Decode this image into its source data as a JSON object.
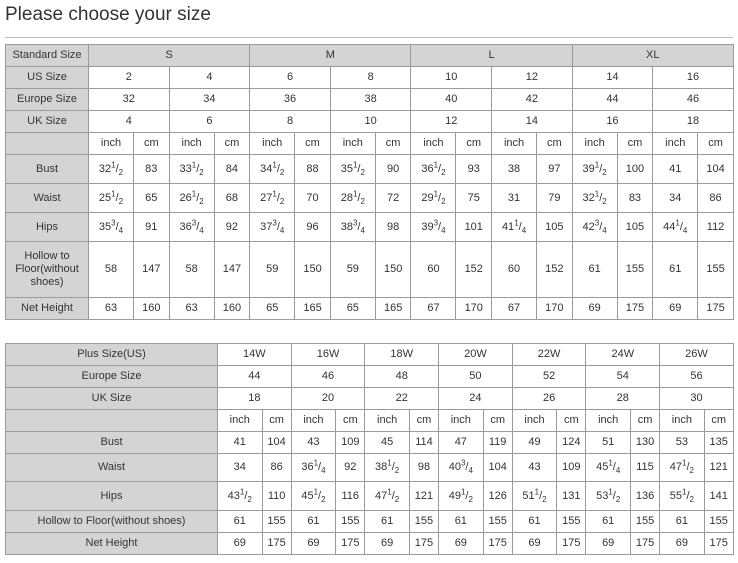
{
  "title": "Please choose your size",
  "table1": {
    "standard": {
      "label": "Standard Size",
      "groups": [
        "S",
        "M",
        "L",
        "XL"
      ]
    },
    "us": {
      "label": "US Size",
      "values": [
        "2",
        "4",
        "6",
        "8",
        "10",
        "12",
        "14",
        "16"
      ]
    },
    "europe": {
      "label": "Europe Size",
      "values": [
        "32",
        "34",
        "36",
        "38",
        "40",
        "42",
        "44",
        "46"
      ]
    },
    "uk": {
      "label": "UK Size",
      "values": [
        "4",
        "6",
        "8",
        "10",
        "12",
        "14",
        "16",
        "18"
      ]
    },
    "units": [
      "inch",
      "cm"
    ],
    "rows": [
      {
        "label": "Bust",
        "values": [
          "32 1/2",
          "83",
          "33 1/2",
          "84",
          "34 1/2",
          "88",
          "35 1/2",
          "90",
          "36 1/2",
          "93",
          "38",
          "97",
          "39 1/2",
          "100",
          "41",
          "104"
        ]
      },
      {
        "label": "Waist",
        "values": [
          "25 1/2",
          "65",
          "26 1/2",
          "68",
          "27 1/2",
          "70",
          "28 1/2",
          "72",
          "29 1/2",
          "75",
          "31",
          "79",
          "32 1/2",
          "83",
          "34",
          "86"
        ]
      },
      {
        "label": "Hips",
        "values": [
          "35 3/4",
          "91",
          "36 3/4",
          "92",
          "37 3/4",
          "96",
          "38 3/4",
          "98",
          "39 3/4",
          "101",
          "41 1/4",
          "105",
          "42 3/4",
          "105",
          "44 1/4",
          "112"
        ]
      },
      {
        "label": "Hollow to Floor(without shoes)",
        "values": [
          "58",
          "147",
          "58",
          "147",
          "59",
          "150",
          "59",
          "150",
          "60",
          "152",
          "60",
          "152",
          "61",
          "155",
          "61",
          "155"
        ]
      },
      {
        "label": "Net Height",
        "values": [
          "63",
          "160",
          "63",
          "160",
          "65",
          "165",
          "65",
          "165",
          "67",
          "170",
          "67",
          "170",
          "69",
          "175",
          "69",
          "175"
        ]
      }
    ]
  },
  "table2": {
    "plus": {
      "label": "Plus Size(US)",
      "values": [
        "14W",
        "16W",
        "18W",
        "20W",
        "22W",
        "24W",
        "26W"
      ]
    },
    "europe": {
      "label": "Europe Size",
      "values": [
        "44",
        "46",
        "48",
        "50",
        "52",
        "54",
        "56"
      ]
    },
    "uk": {
      "label": "UK Size",
      "values": [
        "18",
        "20",
        "22",
        "24",
        "26",
        "28",
        "30"
      ]
    },
    "units": [
      "inch",
      "cm"
    ],
    "rows": [
      {
        "label": "Bust",
        "values": [
          "41",
          "104",
          "43",
          "109",
          "45",
          "114",
          "47",
          "119",
          "49",
          "124",
          "51",
          "130",
          "53",
          "135"
        ]
      },
      {
        "label": "Waist",
        "values": [
          "34",
          "86",
          "36 1/4",
          "92",
          "38 1/2",
          "98",
          "40 3/4",
          "104",
          "43",
          "109",
          "45 1/4",
          "115",
          "47 1/2",
          "121"
        ]
      },
      {
        "label": "Hips",
        "values": [
          "43 1/2",
          "110",
          "45 1/2",
          "116",
          "47 1/2",
          "121",
          "49 1/2",
          "126",
          "51 1/2",
          "131",
          "53 1/2",
          "136",
          "55 1/2",
          "141"
        ]
      },
      {
        "label": "Hollow to Floor(without shoes)",
        "values": [
          "61",
          "155",
          "61",
          "155",
          "61",
          "155",
          "61",
          "155",
          "61",
          "155",
          "61",
          "155",
          "61",
          "155"
        ]
      },
      {
        "label": "Net Height",
        "values": [
          "69",
          "175",
          "69",
          "175",
          "69",
          "175",
          "69",
          "175",
          "69",
          "175",
          "69",
          "175",
          "69",
          "175"
        ]
      }
    ]
  }
}
